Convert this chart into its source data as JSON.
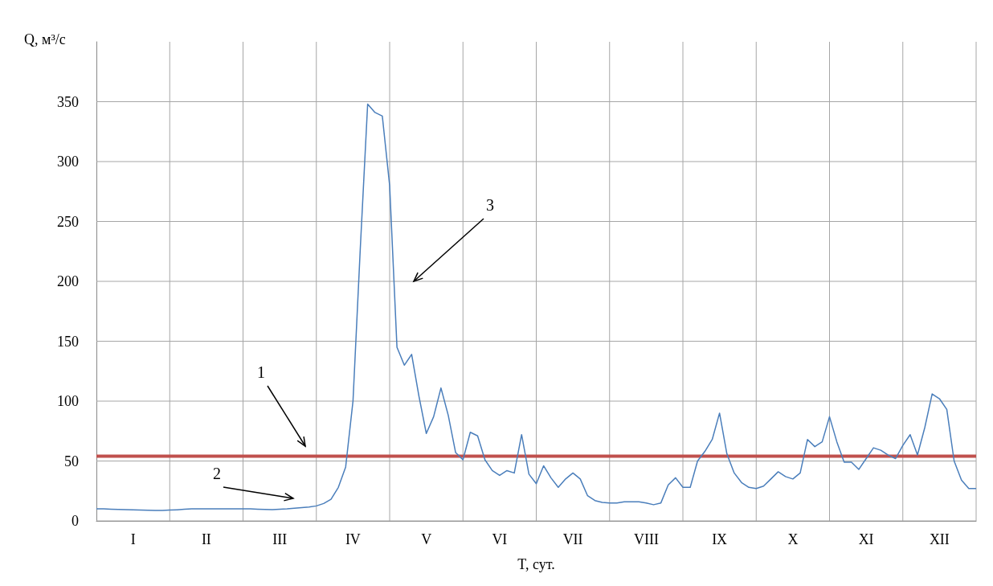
{
  "chart_data": {
    "type": "line",
    "ylabel": "Q, м³/с",
    "xlabel": "T, сут.",
    "categories": [
      null,
      null,
      null,
      null,
      null,
      "I",
      null,
      null,
      null,
      null,
      null,
      null,
      null,
      null,
      null,
      "II",
      null,
      null,
      null,
      null,
      null,
      null,
      null,
      null,
      null,
      "III",
      null,
      null,
      null,
      null,
      null,
      null,
      null,
      null,
      null,
      "IV",
      null,
      null,
      null,
      null,
      null,
      null,
      null,
      null,
      null,
      "V",
      null,
      null,
      null,
      null,
      null,
      null,
      null,
      null,
      null,
      "VI",
      null,
      null,
      null,
      null,
      null,
      null,
      null,
      null,
      null,
      "VII",
      null,
      null,
      null,
      null,
      null,
      null,
      null,
      null,
      null,
      "VIII",
      null,
      null,
      null,
      null,
      null,
      null,
      null,
      null,
      null,
      "IX",
      null,
      null,
      null,
      null,
      null,
      null,
      null,
      null,
      null,
      "X",
      null,
      null,
      null,
      null,
      null,
      null,
      null,
      null,
      null,
      "XI",
      null,
      null,
      null,
      null,
      null,
      null,
      null,
      null,
      null,
      "XII",
      null,
      null,
      null,
      null,
      null
    ],
    "ylim": [
      0,
      400
    ],
    "yticks": [
      0,
      50,
      100,
      150,
      200,
      250,
      300,
      350
    ],
    "grid": true,
    "marker": "none",
    "line_style": "solid",
    "series": [
      {
        "color": "#4a7ebb",
        "values": [
          10,
          10,
          9.8,
          9.6,
          9.4,
          9.2,
          9,
          8.9,
          8.8,
          8.8,
          9,
          9.3,
          9.7,
          10,
          10,
          10,
          10,
          10,
          10,
          10,
          10,
          10,
          9.8,
          9.6,
          9.4,
          9.7,
          10,
          10.5,
          11,
          11.6,
          12.5,
          14.5,
          18,
          28,
          45,
          100,
          228,
          348,
          341,
          338,
          280,
          145,
          130,
          139,
          104,
          73,
          87,
          111,
          88,
          57,
          51,
          74,
          71,
          51,
          42,
          38,
          42,
          40,
          72,
          39,
          31,
          46,
          36,
          28,
          35,
          40,
          35,
          21,
          17,
          15.5,
          15,
          15,
          16,
          16,
          16,
          15,
          13.5,
          15,
          30,
          36,
          28,
          28,
          50,
          58,
          68,
          90,
          56,
          40,
          32,
          28,
          27,
          29,
          35,
          41,
          37,
          35,
          40,
          68,
          62,
          66,
          87,
          66,
          49,
          49,
          43,
          52,
          61,
          59,
          55,
          52,
          63,
          72,
          55,
          78,
          106,
          102,
          93,
          50,
          34,
          27,
          27
        ]
      }
    ],
    "ref_lines": [
      {
        "axis": "y",
        "value": 54,
        "color": "#c0504d"
      }
    ],
    "annotations": [
      "1",
      "2",
      "3"
    ]
  }
}
